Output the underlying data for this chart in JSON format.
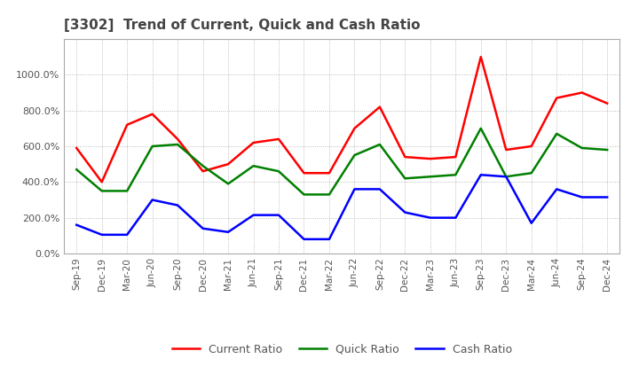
{
  "title": "[3302]  Trend of Current, Quick and Cash Ratio",
  "x_labels": [
    "Sep-19",
    "Dec-19",
    "Mar-20",
    "Jun-20",
    "Sep-20",
    "Dec-20",
    "Mar-21",
    "Jun-21",
    "Sep-21",
    "Dec-21",
    "Mar-22",
    "Jun-22",
    "Sep-22",
    "Dec-22",
    "Mar-23",
    "Jun-23",
    "Sep-23",
    "Dec-23",
    "Mar-24",
    "Jun-24",
    "Sep-24",
    "Dec-24"
  ],
  "current_ratio": [
    590,
    400,
    720,
    780,
    640,
    460,
    500,
    620,
    640,
    450,
    450,
    700,
    820,
    540,
    530,
    540,
    1100,
    580,
    600,
    870,
    900,
    840
  ],
  "quick_ratio": [
    470,
    350,
    350,
    600,
    610,
    490,
    390,
    490,
    460,
    330,
    330,
    550,
    610,
    420,
    430,
    440,
    700,
    430,
    450,
    670,
    590,
    580
  ],
  "cash_ratio": [
    160,
    105,
    105,
    300,
    270,
    140,
    120,
    215,
    215,
    80,
    80,
    360,
    360,
    230,
    200,
    200,
    440,
    430,
    170,
    360,
    315,
    315
  ],
  "ylim": [
    0,
    1200
  ],
  "yticks": [
    0,
    200,
    400,
    600,
    800,
    1000
  ],
  "current_color": "#ff0000",
  "quick_color": "#008000",
  "cash_color": "#0000ff",
  "bg_color": "#ffffff",
  "grid_color": "#aaaaaa",
  "title_color": "#444444"
}
